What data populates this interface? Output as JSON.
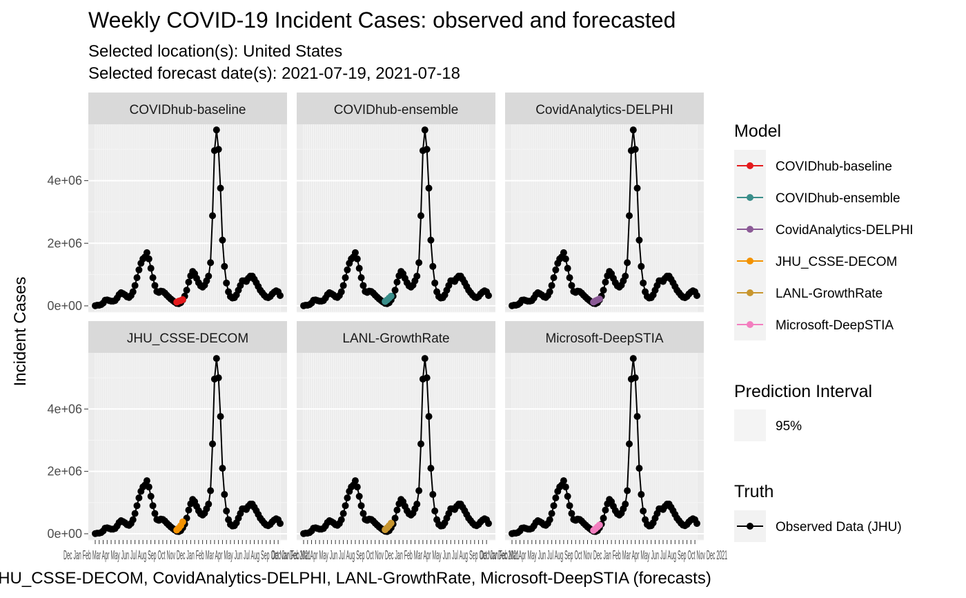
{
  "chart_data": {
    "type": "line",
    "title": "Weekly COVID-19 Incident Cases: observed and forecasted",
    "subtitle_lines": [
      "Selected location(s): United States",
      "Selected forecast date(s): 2021-07-19, 2021-07-18"
    ],
    "ylabel": "Incident Cases",
    "xlabel": "JHU_CSSE-DECOM, CovidAnalytics-DELPHI, LANL-GrowthRate, Microsoft-DeepSTIA (forecasts)",
    "y_ticks": [
      {
        "value": 0,
        "label": "0e+00"
      },
      {
        "value": 2000000,
        "label": "2e+06"
      },
      {
        "value": 4000000,
        "label": "4e+06"
      }
    ],
    "ylim": [
      -200000,
      5800000
    ],
    "x_tick_labels_overlapping": "Dec Jan Feb Mar Apr May Jun Jul Aug Sep Oct Nov Dec Jan Feb Mar Apr May Jun Jul Aug Sep Oct Nov Dec 2021",
    "truth_series": {
      "name": "Observed Data (JHU)",
      "color": "#000000",
      "values": [
        5000,
        20000,
        20000,
        40000,
        90000,
        180000,
        190000,
        170000,
        150000,
        150000,
        170000,
        250000,
        360000,
        420000,
        390000,
        350000,
        290000,
        270000,
        330000,
        450000,
        650000,
        900000,
        1150000,
        1360000,
        1500000,
        1560000,
        1700000,
        1500000,
        1200000,
        900000,
        650000,
        460000,
        430000,
        470000,
        460000,
        410000,
        340000,
        280000,
        220000,
        170000,
        120000,
        80000,
        70000,
        100000,
        190000,
        310000,
        500000,
        760000,
        960000,
        1100000,
        1030000,
        880000,
        740000,
        640000,
        600000,
        660000,
        800000,
        950000,
        1380000,
        2880000,
        4960000,
        5620000,
        5000000,
        3760000,
        2100000,
        1260000,
        730000,
        450000,
        300000,
        250000,
        260000,
        350000,
        500000,
        650000,
        800000,
        800000,
        780000,
        880000,
        950000,
        950000,
        850000,
        740000,
        620000,
        500000,
        420000,
        340000,
        280000,
        260000,
        300000,
        380000,
        440000,
        480000,
        450000,
        330000
      ]
    },
    "forecast_start_index": 41,
    "panels": [
      {
        "model": "COVIDhub-baseline",
        "color": "#E41A1C",
        "forecast": [
          120000,
          150000,
          170000,
          200000
        ]
      },
      {
        "model": "COVIDhub-ensemble",
        "color": "#3A8E8A",
        "forecast": [
          140000,
          190000,
          250000,
          310000
        ]
      },
      {
        "model": "CovidAnalytics-DELPHI",
        "color": "#8B5A96",
        "forecast": [
          120000,
          160000,
          190000,
          220000
        ]
      },
      {
        "model": "JHU_CSSE-DECOM",
        "color": "#F39200",
        "forecast": [
          120000,
          180000,
          260000,
          380000
        ]
      },
      {
        "model": "LANL-GrowthRate",
        "color": "#C8962E",
        "forecast": [
          130000,
          190000,
          260000,
          340000
        ]
      },
      {
        "model": "Microsoft-DeepSTIA",
        "color": "#F37EBF",
        "forecast": [
          110000,
          160000,
          220000,
          280000
        ]
      }
    ],
    "legend": {
      "placement": "right",
      "model_title": "Model",
      "models": [
        {
          "label": "COVIDhub-baseline",
          "color": "#E41A1C"
        },
        {
          "label": "COVIDhub-ensemble",
          "color": "#3A8E8A"
        },
        {
          "label": "CovidAnalytics-DELPHI",
          "color": "#8B5A96"
        },
        {
          "label": "JHU_CSSE-DECOM",
          "color": "#F39200"
        },
        {
          "label": "LANL-GrowthRate",
          "color": "#C8962E"
        },
        {
          "label": "Microsoft-DeepSTIA",
          "color": "#F37EBF"
        }
      ],
      "interval_title": "Prediction Interval",
      "interval_label": "95%",
      "truth_title": "Truth",
      "truth_label": "Observed Data (JHU)"
    },
    "grid": true
  }
}
